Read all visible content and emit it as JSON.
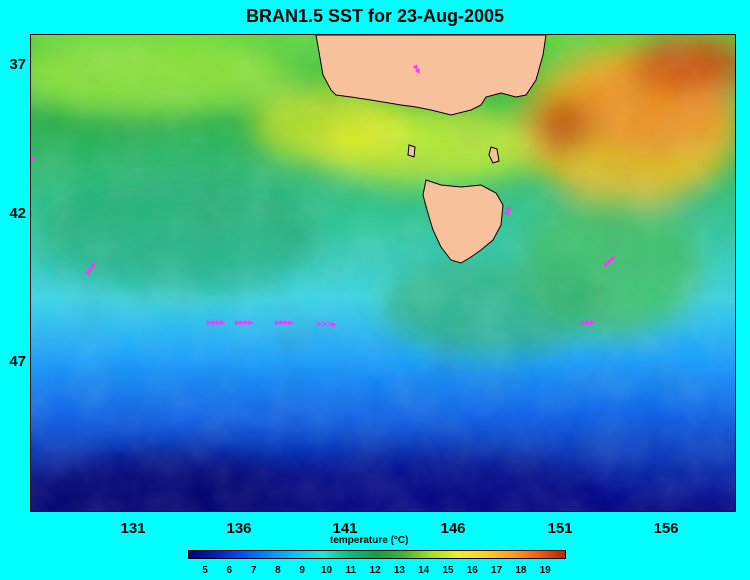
{
  "title": "BRAN1.5 SST for 23-Aug-2005",
  "map": {
    "lon_ticks": [
      "131",
      "136",
      "141",
      "146",
      "151",
      "156"
    ],
    "lat_ticks": [
      "37",
      "42",
      "47"
    ],
    "land_color": "#f7c29b",
    "float_marker_color": "#ff33ff"
  },
  "colorbar": {
    "title": "temperature (°C)",
    "ticks": [
      "5",
      "6",
      "7",
      "8",
      "9",
      "10",
      "11",
      "12",
      "13",
      "14",
      "15",
      "16",
      "17",
      "18",
      "19"
    ],
    "colors": [
      "#000080",
      "#0020c0",
      "#0050ff",
      "#0090ff",
      "#00c8ff",
      "#20e8d0",
      "#00c080",
      "#10a040",
      "#40b830",
      "#a0e020",
      "#f0f020",
      "#ffd020",
      "#ffa020",
      "#f06010",
      "#c02000"
    ]
  }
}
